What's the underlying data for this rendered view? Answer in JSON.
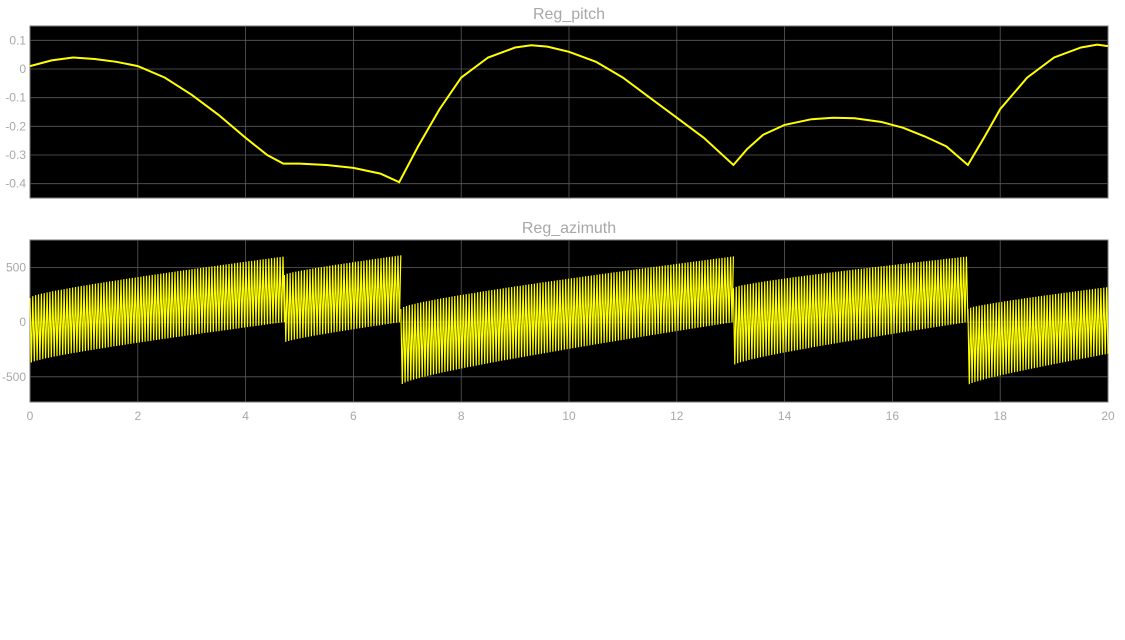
{
  "chart_data": [
    {
      "type": "line",
      "title": "Reg_pitch",
      "xlim": [
        0,
        20
      ],
      "ylim": [
        -0.45,
        0.15
      ],
      "yticks": [
        0.1,
        0,
        -0.1,
        -0.2,
        -0.3,
        -0.4
      ],
      "ytick_labels": [
        "0.1",
        "0",
        "-0.1",
        "-0.2",
        "-0.3",
        "-0.4"
      ],
      "grid": true,
      "background": "#000000",
      "line_color": "#ffff00",
      "series": [
        {
          "x": [
            0,
            0.4,
            0.8,
            1.2,
            1.6,
            2.0,
            2.5,
            3.0,
            3.5,
            4.0,
            4.4,
            4.7,
            5.0,
            5.5,
            6.0,
            6.5,
            6.85,
            7.2,
            7.6,
            8.0,
            8.5,
            9.0,
            9.3,
            9.6,
            10.0,
            10.5,
            11.0,
            11.5,
            12.0,
            12.5,
            13.05,
            13.3,
            13.6,
            14.0,
            14.5,
            14.9,
            15.3,
            15.8,
            16.2,
            16.6,
            17.0,
            17.4,
            17.7,
            18.0,
            18.5,
            19.0,
            19.5,
            19.8,
            20.0
          ],
          "y": [
            0.01,
            0.03,
            0.04,
            0.035,
            0.025,
            0.01,
            -0.03,
            -0.09,
            -0.16,
            -0.24,
            -0.3,
            -0.33,
            -0.33,
            -0.335,
            -0.345,
            -0.365,
            -0.395,
            -0.27,
            -0.14,
            -0.03,
            0.04,
            0.075,
            0.083,
            0.078,
            0.06,
            0.025,
            -0.03,
            -0.1,
            -0.17,
            -0.24,
            -0.335,
            -0.28,
            -0.23,
            -0.195,
            -0.175,
            -0.17,
            -0.172,
            -0.185,
            -0.205,
            -0.235,
            -0.27,
            -0.335,
            -0.24,
            -0.14,
            -0.03,
            0.04,
            0.075,
            0.085,
            0.08
          ]
        }
      ]
    },
    {
      "type": "line",
      "title": "Reg_azimuth",
      "xlim": [
        0,
        20
      ],
      "ylim": [
        -730,
        750
      ],
      "yticks": [
        500,
        0,
        -500
      ],
      "ytick_labels": [
        "500",
        "0",
        "-500"
      ],
      "xticks": [
        0,
        2,
        4,
        6,
        8,
        10,
        12,
        14,
        16,
        18,
        20
      ],
      "xtick_labels": [
        "0",
        "2",
        "4",
        "6",
        "8",
        "10",
        "12",
        "14",
        "16",
        "18",
        "20"
      ],
      "grid": true,
      "background": "#000000",
      "line_color": "#ffff00",
      "description_free_note": "",
      "segments": [
        {
          "x_start": 0,
          "x_end": 4.72,
          "upper_start": 220,
          "upper_end": 600,
          "lower_start": -380,
          "lower_end": 0
        },
        {
          "x_start": 4.72,
          "x_end": 6.88,
          "upper_start": 430,
          "upper_end": 610,
          "lower_start": -190,
          "lower_end": 0
        },
        {
          "x_start": 6.88,
          "x_end": 13.05,
          "upper_start": 120,
          "upper_end": 600,
          "lower_start": -580,
          "lower_end": 0
        },
        {
          "x_start": 13.05,
          "x_end": 17.4,
          "upper_start": 310,
          "upper_end": 600,
          "lower_start": -400,
          "lower_end": 0
        },
        {
          "x_start": 17.4,
          "x_end": 20,
          "upper_start": 120,
          "upper_end": 320,
          "lower_start": -580,
          "lower_end": -290
        }
      ]
    }
  ]
}
